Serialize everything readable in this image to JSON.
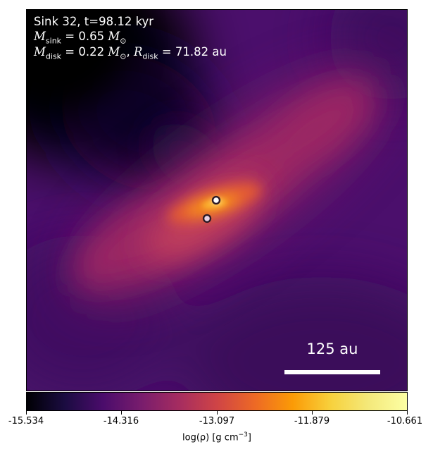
{
  "panel": {
    "sink_line": "Sink 32, t=98.12 kyr",
    "msink": {
      "symbol": "M",
      "subscript": "sink",
      "value_text": "= 0.65",
      "unit_symbol": "M",
      "unit_subscript": "⊙"
    },
    "mdisk": {
      "symbol": "M",
      "subscript": "disk",
      "value_text": "= 0.22",
      "unit_symbol": "M",
      "unit_subscript": "⊙"
    },
    "rdisk": {
      "separator": ",",
      "symbol": "R",
      "subscript": "disk",
      "value_text": "= 71.82 au"
    }
  },
  "scale_bar": {
    "label": "125 au"
  },
  "colorbar": {
    "colormap": "inferno",
    "range": [
      -15.534,
      -10.661
    ],
    "ticks": [
      "-15.534",
      "-14.316",
      "-13.097",
      "-11.879",
      "-10.661"
    ],
    "label_main": "log(ρ) [g cm",
    "label_exp": "−3",
    "label_end": "]"
  },
  "sinks": [
    {
      "id": "primary",
      "fill": "#ffffff",
      "edge": "#2b1a26"
    },
    {
      "id": "companion",
      "fill": "#e8d2e4",
      "edge": "#2b1a26"
    }
  ],
  "colors": {
    "background_dark": "#05020f",
    "envelope": "#4e106e",
    "filament": "#c2405b",
    "disk_core": "#f58a1a",
    "disk_peak": "#fde88a"
  }
}
